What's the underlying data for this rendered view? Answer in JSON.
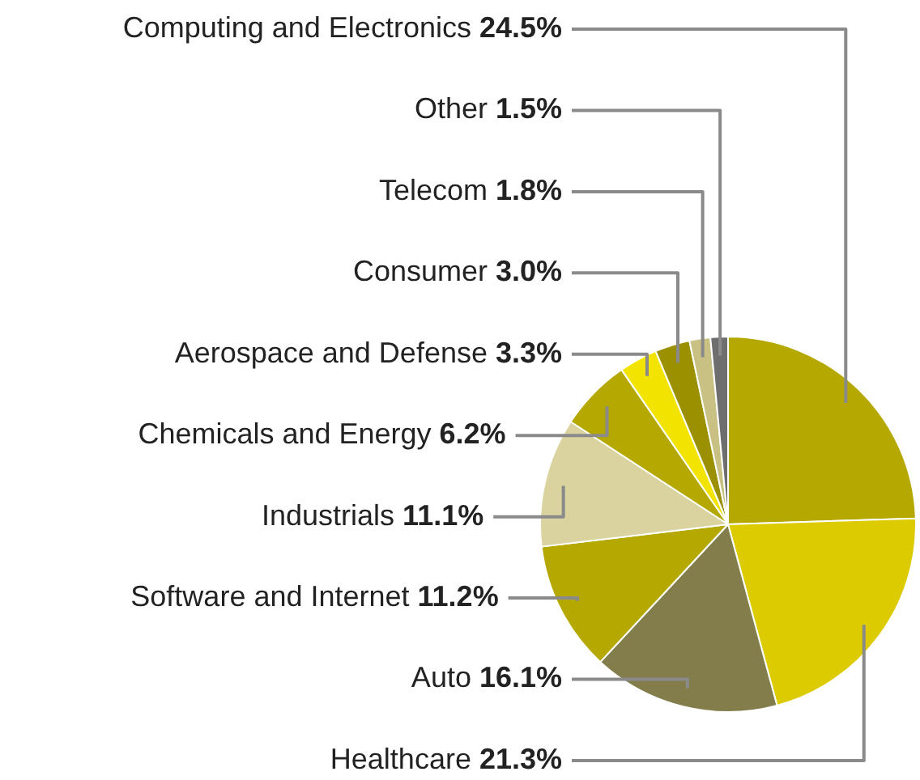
{
  "chart_data": {
    "type": "pie",
    "categories": [
      "Computing and Electronics",
      "Healthcare",
      "Auto",
      "Software and Internet",
      "Industrials",
      "Chemicals and Energy",
      "Aerospace and Defense",
      "Consumer",
      "Telecom",
      "Other"
    ],
    "values": [
      24.5,
      21.3,
      16.1,
      11.2,
      11.1,
      6.2,
      3.3,
      3.0,
      1.8,
      1.5
    ],
    "value_labels": [
      "24.5%",
      "21.3%",
      "16.1%",
      "11.2%",
      "11.1%",
      "6.2%",
      "3.3%",
      "3.0%",
      "1.8%",
      "1.5%"
    ],
    "colors": [
      "#b5a800",
      "#dccb00",
      "#837d4c",
      "#b5a800",
      "#dad3a0",
      "#b5a800",
      "#f2e300",
      "#9b9000",
      "#c9c184",
      "#6e6e6e"
    ],
    "legend": false
  }
}
